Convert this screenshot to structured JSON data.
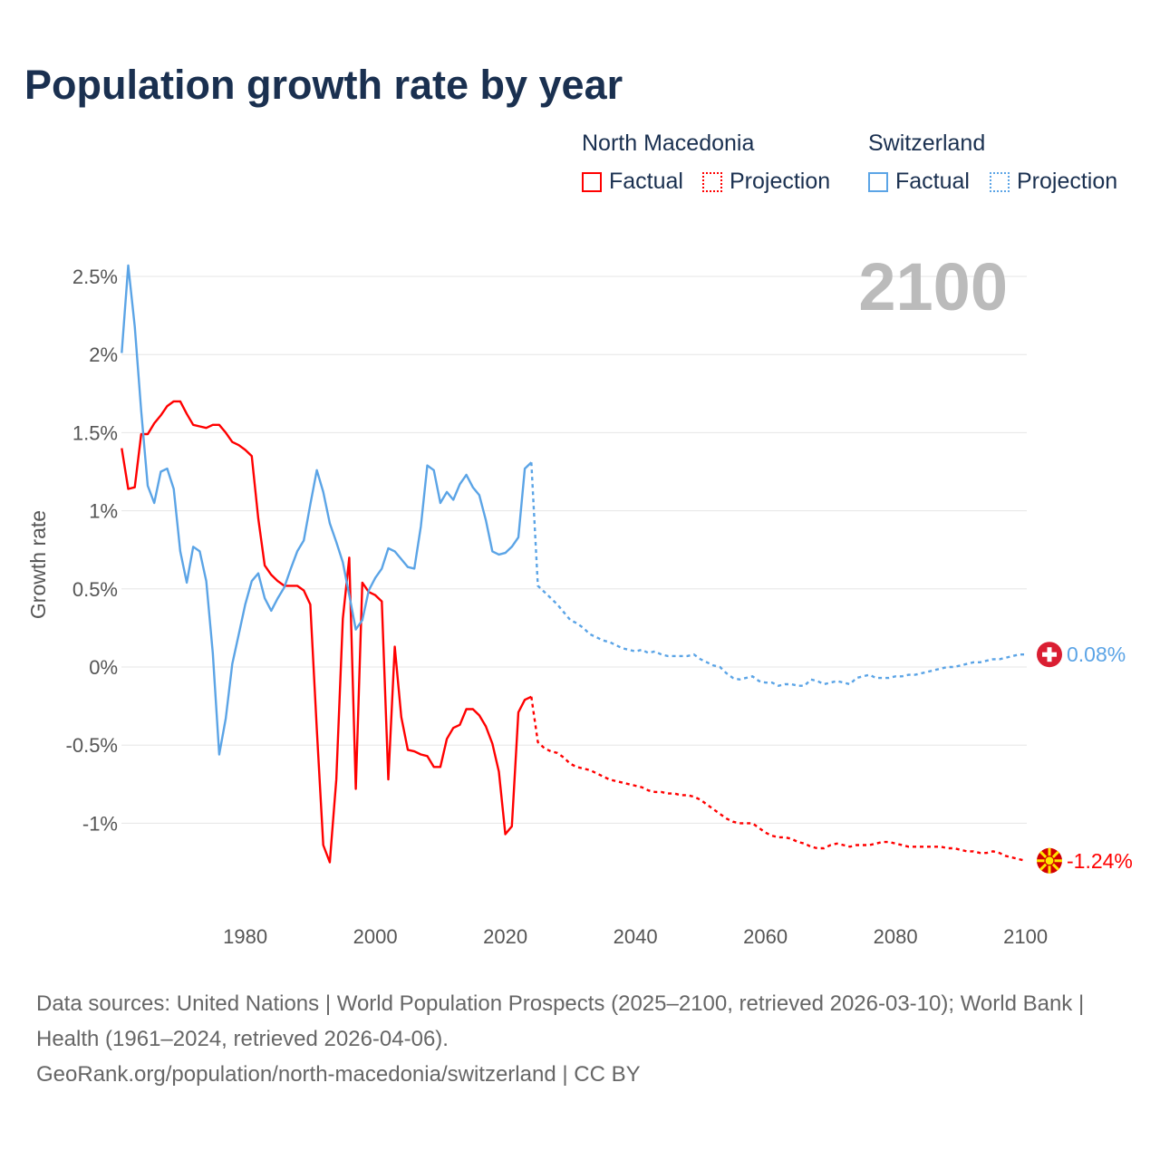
{
  "title": "Population growth rate by year",
  "legend": {
    "groups": [
      {
        "name": "North Macedonia",
        "color": "#ff0000",
        "factual": "Factual",
        "projection": "Projection"
      },
      {
        "name": "Switzerland",
        "color": "#5ba4e6",
        "factual": "Factual",
        "projection": "Projection"
      }
    ]
  },
  "year_label": "2100",
  "footer": {
    "sources": "Data sources: United Nations | World Population Prospects (2025–2100, retrieved 2026-03-10); World Bank | Health (1961–2024, retrieved 2026-04-06).",
    "link": "GeoRank.org/population/north-macedonia/switzerland | CC BY"
  },
  "chart_data": {
    "type": "line",
    "title": "Population growth rate by year",
    "xlabel": "",
    "ylabel": "Growth rate",
    "xlim": [
      1961,
      2100
    ],
    "ylim": [
      -1.5,
      2.6
    ],
    "x_ticks": [
      "1980",
      "2000",
      "2020",
      "2040",
      "2060",
      "2080",
      "2100"
    ],
    "y_ticks": [
      {
        "value": 2.5,
        "label": "2.5%"
      },
      {
        "value": 2,
        "label": "2%"
      },
      {
        "value": 1.5,
        "label": "1.5%"
      },
      {
        "value": 1,
        "label": "1%"
      },
      {
        "value": 0.5,
        "label": "0.5%"
      },
      {
        "value": 0,
        "label": "0%"
      },
      {
        "value": -0.5,
        "label": "-0.5%"
      },
      {
        "value": -1,
        "label": "-1%"
      }
    ],
    "grid": true,
    "series": [
      {
        "name": "North Macedonia",
        "color": "#ff0000",
        "end_label": "-1.24%",
        "factual_start": 1961,
        "factual": [
          1.4,
          1.14,
          1.15,
          1.49,
          1.49,
          1.56,
          1.61,
          1.67,
          1.7,
          1.7,
          1.62,
          1.55,
          1.54,
          1.53,
          1.55,
          1.55,
          1.5,
          1.44,
          1.42,
          1.39,
          1.35,
          0.95,
          0.65,
          0.59,
          0.55,
          0.52,
          0.52,
          0.52,
          0.49,
          0.4,
          -0.4,
          -1.14,
          -1.25,
          -0.72,
          0.31,
          0.7,
          -0.78,
          0.54,
          0.48,
          0.46,
          0.42,
          -0.72,
          0.13,
          -0.32,
          -0.53,
          -0.54,
          -0.56,
          -0.57,
          -0.64,
          -0.64,
          -0.46,
          -0.39,
          -0.37,
          -0.27,
          -0.27,
          -0.31,
          -0.38,
          -0.49,
          -0.67,
          -1.07,
          -1.02,
          -0.29,
          -0.21,
          -0.19
        ],
        "projection_start": 2025,
        "projection": [
          -0.48,
          -0.52,
          -0.54,
          -0.55,
          -0.58,
          -0.62,
          -0.64,
          -0.65,
          -0.66,
          -0.68,
          -0.7,
          -0.72,
          -0.73,
          -0.74,
          -0.75,
          -0.76,
          -0.77,
          -0.79,
          -0.8,
          -0.8,
          -0.81,
          -0.81,
          -0.82,
          -0.82,
          -0.83,
          -0.85,
          -0.88,
          -0.91,
          -0.94,
          -0.97,
          -0.99,
          -1.0,
          -1.0,
          -1.0,
          -1.03,
          -1.06,
          -1.08,
          -1.09,
          -1.09,
          -1.1,
          -1.12,
          -1.13,
          -1.15,
          -1.16,
          -1.16,
          -1.14,
          -1.13,
          -1.14,
          -1.15,
          -1.14,
          -1.14,
          -1.14,
          -1.13,
          -1.12,
          -1.12,
          -1.13,
          -1.14,
          -1.15,
          -1.15,
          -1.15,
          -1.15,
          -1.15,
          -1.15,
          -1.16,
          -1.16,
          -1.17,
          -1.18,
          -1.18,
          -1.19,
          -1.19,
          -1.18,
          -1.19,
          -1.21,
          -1.22,
          -1.23,
          -1.24
        ]
      },
      {
        "name": "Switzerland",
        "color": "#5ba4e6",
        "end_label": "0.08%",
        "factual_start": 1961,
        "factual": [
          2.01,
          2.57,
          2.18,
          1.64,
          1.16,
          1.05,
          1.25,
          1.27,
          1.14,
          0.74,
          0.54,
          0.77,
          0.74,
          0.55,
          0.09,
          -0.56,
          -0.33,
          0.02,
          0.21,
          0.4,
          0.55,
          0.6,
          0.44,
          0.36,
          0.44,
          0.51,
          0.63,
          0.74,
          0.81,
          1.04,
          1.26,
          1.12,
          0.92,
          0.8,
          0.67,
          0.46,
          0.24,
          0.3,
          0.49,
          0.57,
          0.63,
          0.76,
          0.74,
          0.69,
          0.64,
          0.63,
          0.9,
          1.29,
          1.26,
          1.05,
          1.12,
          1.07,
          1.17,
          1.23,
          1.15,
          1.1,
          0.94,
          0.74,
          0.72,
          0.73,
          0.77,
          0.83,
          1.27,
          1.31
        ],
        "projection_start": 2025,
        "projection": [
          0.52,
          0.48,
          0.44,
          0.4,
          0.35,
          0.3,
          0.28,
          0.25,
          0.21,
          0.19,
          0.17,
          0.16,
          0.14,
          0.12,
          0.11,
          0.1,
          0.11,
          0.09,
          0.1,
          0.08,
          0.07,
          0.07,
          0.07,
          0.07,
          0.08,
          0.05,
          0.03,
          0.01,
          0.0,
          -0.04,
          -0.07,
          -0.08,
          -0.07,
          -0.06,
          -0.09,
          -0.1,
          -0.1,
          -0.12,
          -0.11,
          -0.11,
          -0.12,
          -0.12,
          -0.08,
          -0.09,
          -0.11,
          -0.1,
          -0.09,
          -0.1,
          -0.11,
          -0.07,
          -0.06,
          -0.05,
          -0.07,
          -0.07,
          -0.07,
          -0.06,
          -0.06,
          -0.05,
          -0.05,
          -0.04,
          -0.03,
          -0.02,
          -0.01,
          0.0,
          0.0,
          0.01,
          0.02,
          0.03,
          0.03,
          0.04,
          0.05,
          0.05,
          0.06,
          0.07,
          0.08,
          0.08
        ]
      }
    ]
  }
}
